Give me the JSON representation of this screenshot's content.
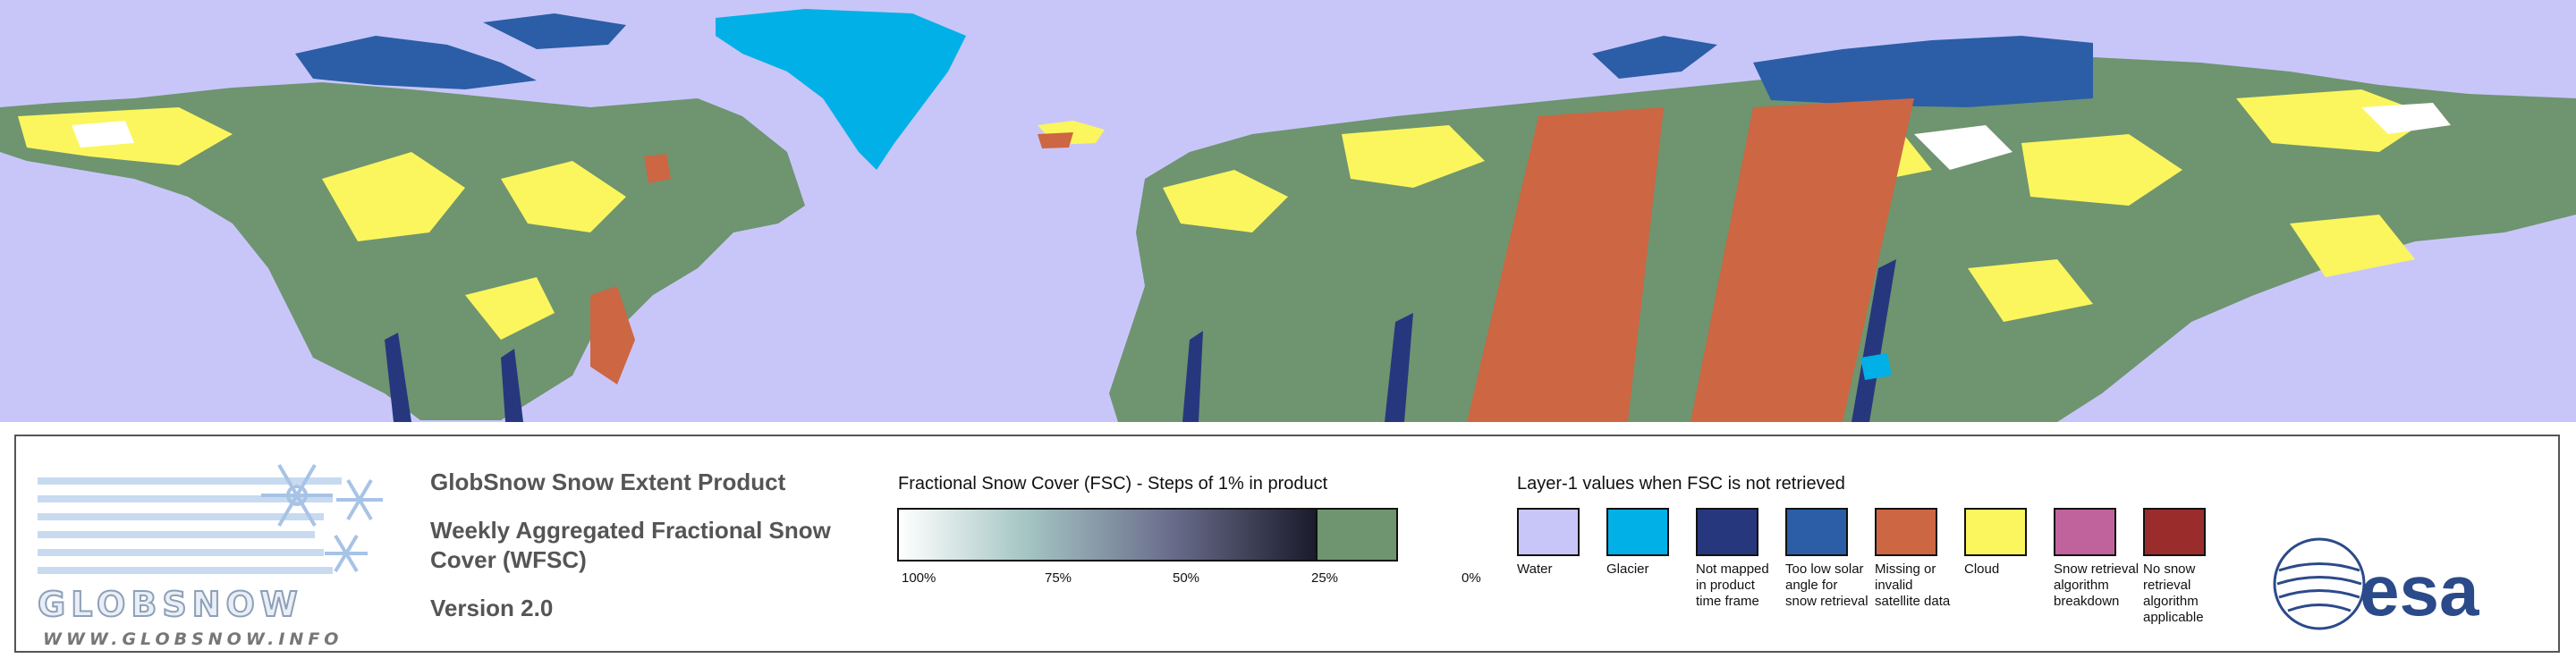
{
  "map": {
    "colors": {
      "water": "#c8c6f9",
      "glacier": "#00b0e6",
      "not_mapped": "#27377e",
      "low_solar": "#2b5ea6",
      "missing": "#cd6642",
      "cloud": "#fbf65d",
      "retrieval_breakdown": "#c0629c",
      "not_applicable": "#9b2c2c",
      "fsc_zero": "#6f9470",
      "snow": "#ffffff"
    }
  },
  "logo": {
    "wordmark": "GLOBSNOW",
    "url": "WWW.GLOBSNOW.INFO",
    "icon": "snowflake-icon"
  },
  "product": {
    "title": "GlobSnow Snow Extent Product",
    "subtitle": "Weekly Aggregated Fractional Snow Cover (WFSC)",
    "version": "Version 2.0"
  },
  "fsc_legend": {
    "title": "Fractional Snow Cover (FSC) - Steps of 1% in product",
    "ticks": [
      "100%",
      "75%",
      "50%",
      "25%",
      "0%"
    ]
  },
  "layer1_legend": {
    "title": "Layer-1 values when FSC is not retrieved",
    "items": [
      {
        "label": "Water",
        "color": "#c8c6f9"
      },
      {
        "label": "Glacier",
        "color": "#00b0e6"
      },
      {
        "label": "Not mapped in product time frame",
        "color": "#27377e"
      },
      {
        "label": "Too low solar angle for snow retrieval",
        "color": "#2b5ea6"
      },
      {
        "label": "Missing or invalid satellite data",
        "color": "#cd6642"
      },
      {
        "label": "Cloud",
        "color": "#fbf65d"
      },
      {
        "label": "Snow retrieval algorithm breakdown",
        "color": "#c0629c"
      },
      {
        "label": "No snow retrieval algorithm applicable",
        "color": "#9b2c2c"
      }
    ]
  },
  "esa_logo": {
    "text": "esa",
    "color": "#2b4a8a"
  }
}
